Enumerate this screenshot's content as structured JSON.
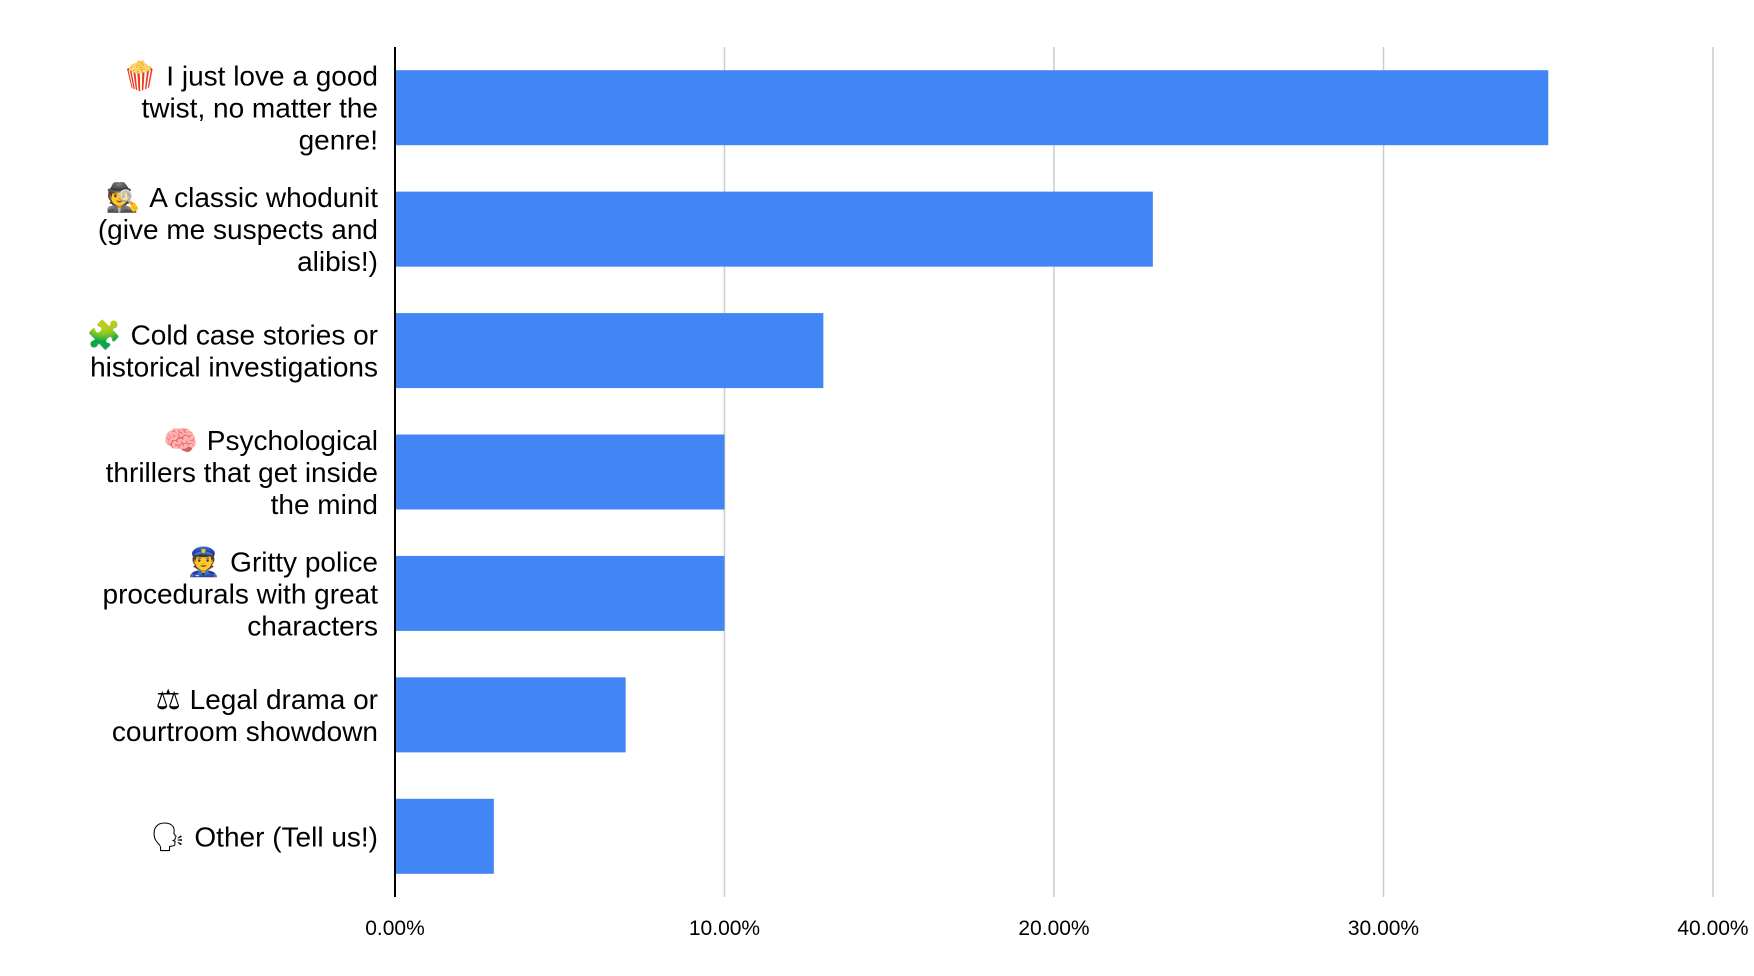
{
  "chart_data": {
    "type": "bar",
    "orientation": "horizontal",
    "title": "",
    "xlabel": "",
    "ylabel": "",
    "categories": [
      {
        "icon": "popcorn-icon",
        "emoji": "🍿",
        "lines": [
          "I just love a good",
          "twist, no matter the",
          "genre!"
        ]
      },
      {
        "icon": "detective-icon",
        "emoji": "🕵",
        "lines": [
          "A classic whodunit",
          "(give me suspects and",
          "alibis!)"
        ]
      },
      {
        "icon": "puzzle-piece-icon",
        "emoji": "🧩",
        "lines": [
          "Cold case stories or",
          "historical investigations"
        ]
      },
      {
        "icon": "brain-icon",
        "emoji": "🧠",
        "lines": [
          "Psychological",
          "thrillers that get inside",
          "the mind"
        ]
      },
      {
        "icon": "police-officer-icon",
        "emoji": "👮",
        "lines": [
          "Gritty police",
          "procedurals with great",
          "characters"
        ]
      },
      {
        "icon": "balance-scale-icon",
        "emoji": "⚖",
        "lines": [
          "Legal drama or",
          "courtroom showdown"
        ]
      },
      {
        "icon": "speaking-head-icon",
        "emoji": "🗣",
        "lines": [
          "Other (Tell us!)"
        ]
      }
    ],
    "values": [
      35,
      23,
      13,
      10,
      10,
      7,
      3
    ],
    "value_unit": "percent",
    "xlim": [
      0,
      40
    ],
    "xticks": [
      0,
      10,
      20,
      30,
      40
    ],
    "xtick_labels": [
      "0.00%",
      "10.00%",
      "20.00%",
      "30.00%",
      "40.00%"
    ],
    "grid": "vertical",
    "legend": "none",
    "colors": {
      "bar": "#4285f4",
      "grid": "#cccccc",
      "axis": "#000000",
      "text": "#000000"
    }
  }
}
